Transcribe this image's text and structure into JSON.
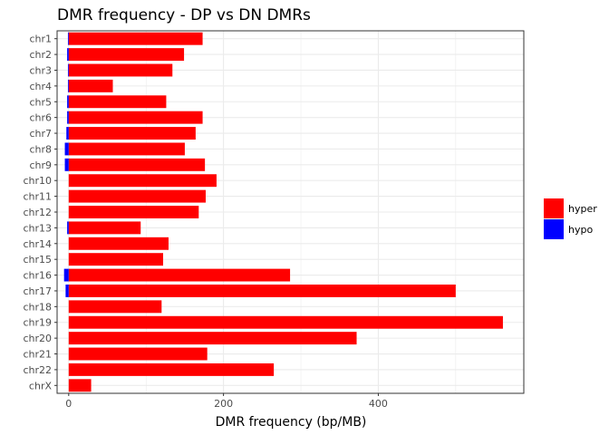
{
  "chart_data": {
    "type": "bar",
    "orientation": "horizontal",
    "stacked": true,
    "title": "DMR frequency - DP vs DN DMRs",
    "xlabel": "DMR frequency (bp/MB)",
    "ylabel": "",
    "xlim": [
      -15,
      588
    ],
    "xticks": [
      0,
      200,
      400
    ],
    "grid": true,
    "legend_position": "right",
    "categories": [
      "chr1",
      "chr2",
      "chr3",
      "chr4",
      "chr5",
      "chr6",
      "chr7",
      "chr8",
      "chr9",
      "chr10",
      "chr11",
      "chr12",
      "chr13",
      "chr14",
      "chr15",
      "chr16",
      "chr17",
      "chr18",
      "chr19",
      "chr20",
      "chr21",
      "chr22",
      "chrX"
    ],
    "series": [
      {
        "name": "hyper",
        "color": "#ff0000",
        "values": [
          173,
          149,
          134,
          57,
          126,
          173,
          164,
          150,
          176,
          191,
          177,
          168,
          93,
          129,
          122,
          286,
          500,
          120,
          561,
          372,
          179,
          265,
          29
        ]
      },
      {
        "name": "hypo",
        "color": "#0000ff",
        "values": [
          -1,
          -2,
          -1,
          -1,
          -2,
          -2,
          -3,
          -5,
          -5,
          0,
          0,
          0,
          -2,
          0,
          0,
          -6,
          -4,
          0,
          0,
          0,
          0,
          0,
          0
        ]
      }
    ]
  }
}
